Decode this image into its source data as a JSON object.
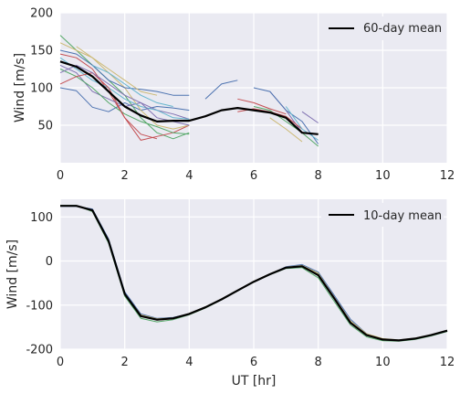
{
  "chart_data": [
    {
      "type": "line",
      "xlabel": "",
      "ylabel": "Wind [m/s]",
      "xlim": [
        0,
        12
      ],
      "ylim": [
        0,
        200
      ],
      "xticks": [
        0,
        2,
        4,
        6,
        8,
        10,
        12
      ],
      "yticks": [
        50,
        100,
        150,
        200
      ],
      "grid": true,
      "legend_position": "top-right",
      "legend": [
        "60-day mean"
      ],
      "mean": {
        "name": "60-day mean",
        "color": "#000000",
        "x": [
          0,
          0.5,
          1,
          1.5,
          2,
          2.5,
          3,
          3.5,
          4,
          4.5,
          5,
          5.5,
          6,
          6.5,
          7,
          7.5,
          8
        ],
        "y": [
          135,
          128,
          115,
          95,
          75,
          63,
          55,
          56,
          56,
          62,
          70,
          73,
          70,
          67,
          60,
          40,
          38
        ]
      },
      "series": [
        {
          "color": "#4c72b0",
          "x": [
            0,
            0.5,
            1,
            1.5,
            2,
            2.5,
            3,
            3.5,
            4
          ],
          "y": [
            100,
            96,
            74,
            68,
            80,
            70,
            75,
            73,
            70
          ]
        },
        {
          "color": "#55a868",
          "x": [
            0,
            0.5,
            1,
            1.5,
            2,
            2.5,
            3,
            3.5,
            4
          ],
          "y": [
            170,
            150,
            130,
            110,
            90,
            60,
            40,
            32,
            40
          ]
        },
        {
          "color": "#c44e52",
          "x": [
            0,
            0.5,
            1,
            1.5,
            2,
            2.5,
            3,
            3.5,
            4
          ],
          "y": [
            145,
            140,
            125,
            95,
            60,
            30,
            35,
            40,
            50
          ]
        },
        {
          "color": "#8172b2",
          "x": [
            0,
            0.5,
            1,
            1.5,
            2,
            2.5,
            3,
            3.5,
            4
          ],
          "y": [
            130,
            120,
            95,
            85,
            75,
            80,
            70,
            65,
            58
          ]
        },
        {
          "color": "#ccb974",
          "x": [
            0,
            0.5,
            1,
            1.5,
            2,
            2.5,
            3,
            3.5,
            4
          ],
          "y": [
            160,
            150,
            140,
            120,
            100,
            70,
            50,
            45,
            50
          ]
        },
        {
          "color": "#64b5cd",
          "x": [
            0,
            0.5,
            1,
            1.5,
            2,
            2.5,
            3,
            3.5,
            4
          ],
          "y": [
            140,
            125,
            110,
            100,
            85,
            75,
            70,
            60,
            58
          ]
        },
        {
          "color": "#4c72b0",
          "x": [
            0,
            0.5,
            1,
            1.5,
            2,
            2.5,
            3,
            3.5,
            4
          ],
          "y": [
            150,
            145,
            130,
            110,
            100,
            98,
            95,
            90,
            90
          ]
        },
        {
          "color": "#55a868",
          "x": [
            0,
            0.5,
            1,
            1.5,
            2,
            2.5,
            3,
            3.5,
            4
          ],
          "y": [
            125,
            115,
            100,
            80,
            65,
            55,
            48,
            40,
            38
          ]
        },
        {
          "color": "#c44e52",
          "x": [
            0,
            0.5,
            1,
            1.5,
            2,
            2.5,
            3
          ],
          "y": [
            105,
            115,
            120,
            100,
            60,
            38,
            32
          ]
        },
        {
          "color": "#8172b2",
          "x": [
            0,
            0.5,
            1,
            1.5,
            2,
            2.5,
            3,
            3.5,
            4
          ],
          "y": [
            120,
            130,
            120,
            105,
            90,
            80,
            60,
            55,
            50
          ]
        },
        {
          "color": "#ccb974",
          "x": [
            0.5,
            1,
            1.5,
            2,
            2.5,
            3
          ],
          "y": [
            155,
            140,
            125,
            110,
            95,
            90
          ]
        },
        {
          "color": "#64b5cd",
          "x": [
            1,
            1.5,
            2,
            2.5,
            3,
            3.5
          ],
          "y": [
            130,
            120,
            105,
            90,
            80,
            75
          ]
        },
        {
          "color": "#4c72b0",
          "x": [
            4.5,
            5,
            5.5
          ],
          "y": [
            85,
            105,
            110
          ]
        },
        {
          "color": "#c44e52",
          "x": [
            5.5,
            6,
            6.5,
            7
          ],
          "y": [
            85,
            80,
            72,
            65
          ]
        },
        {
          "color": "#8172b2",
          "x": [
            6.5,
            7,
            7.5
          ],
          "y": [
            95,
            70,
            40
          ]
        },
        {
          "color": "#55a868",
          "x": [
            6,
            6.5,
            7,
            7.5,
            8
          ],
          "y": [
            75,
            70,
            55,
            40,
            22
          ]
        },
        {
          "color": "#ccb974",
          "x": [
            6.5,
            7,
            7.5
          ],
          "y": [
            60,
            45,
            28
          ]
        },
        {
          "color": "#4c72b0",
          "x": [
            6,
            6.5,
            7,
            7.5,
            8
          ],
          "y": [
            100,
            95,
            70,
            55,
            25
          ]
        },
        {
          "color": "#c44e52",
          "x": [
            5.5,
            6,
            6.5,
            7,
            7.5
          ],
          "y": [
            68,
            72,
            68,
            62,
            45
          ]
        },
        {
          "color": "#8172b2",
          "x": [
            7.5,
            8
          ],
          "y": [
            68,
            53
          ]
        },
        {
          "color": "#64b5cd",
          "x": [
            7,
            7.5,
            8
          ],
          "y": [
            75,
            45,
            30
          ]
        }
      ]
    },
    {
      "type": "line",
      "xlabel": "UT [hr]",
      "ylabel": "Wind [m/s]",
      "xlim": [
        0,
        12
      ],
      "ylim": [
        -200,
        140
      ],
      "xticks": [
        0,
        2,
        4,
        6,
        8,
        10,
        12
      ],
      "yticks": [
        -200,
        -100,
        0,
        100
      ],
      "grid": true,
      "legend_position": "top-right",
      "legend": [
        "10-day mean"
      ],
      "mean": {
        "name": "10-day mean",
        "color": "#000000",
        "x": [
          0,
          0.5,
          1,
          1.5,
          2,
          2.5,
          3,
          3.5,
          4,
          4.5,
          5,
          5.5,
          6,
          6.5,
          7,
          7.5,
          8,
          8.5,
          9,
          9.5,
          10,
          10.5,
          11,
          11.5,
          12
        ],
        "y": [
          125,
          125,
          115,
          45,
          -75,
          -125,
          -133,
          -130,
          -120,
          -105,
          -87,
          -67,
          -47,
          -30,
          -15,
          -12,
          -32,
          -85,
          -140,
          -168,
          -178,
          -180,
          -176,
          -168,
          -158
        ]
      },
      "series": [
        {
          "color": "#4c72b0",
          "x": [
            0,
            0.5,
            1,
            1.5,
            2,
            2.5,
            3,
            3.5,
            4,
            4.5,
            5,
            5.5,
            6,
            6.5,
            7,
            7.5,
            8,
            8.5,
            9,
            9.5,
            10,
            10.5,
            11,
            11.5,
            12
          ],
          "y": [
            124,
            124,
            118,
            50,
            -70,
            -120,
            -130,
            -128,
            -120,
            -105,
            -87,
            -67,
            -47,
            -30,
            -13,
            -8,
            -25,
            -78,
            -132,
            -165,
            -178,
            -180,
            -176,
            -168,
            -157
          ]
        },
        {
          "color": "#55a868",
          "x": [
            0,
            0.5,
            1,
            1.5,
            2,
            2.5,
            3,
            3.5,
            4,
            4.5,
            5,
            5.5,
            6,
            6.5,
            7,
            7.5,
            8,
            8.5,
            9,
            9.5,
            10,
            10.5,
            11,
            11.5,
            12
          ],
          "y": [
            126,
            126,
            112,
            40,
            -80,
            -130,
            -138,
            -133,
            -122,
            -107,
            -88,
            -68,
            -48,
            -31,
            -17,
            -15,
            -38,
            -92,
            -145,
            -172,
            -181,
            -182,
            -178,
            -170,
            -160
          ]
        },
        {
          "color": "#c44e52",
          "x": [
            0,
            0.5,
            1,
            1.5,
            2,
            2.5,
            3,
            3.5,
            4,
            4.5,
            5,
            5.5,
            6,
            6.5,
            7,
            7.5,
            8,
            8.5,
            9,
            9.5,
            10,
            10.5,
            11,
            11.5,
            12
          ],
          "y": [
            125,
            125,
            114,
            44,
            -76,
            -124,
            -134,
            -131,
            -121,
            -106,
            -87,
            -67,
            -47,
            -30,
            -15,
            -12,
            -32,
            -86,
            -140,
            -168,
            -178,
            -180,
            -176,
            -168,
            -158
          ]
        },
        {
          "color": "#ccb974",
          "x": [
            0,
            0.5,
            1,
            1.5,
            2,
            2.5,
            3,
            3.5,
            4,
            4.5,
            5,
            5.5,
            6,
            6.5,
            7,
            7.5,
            8,
            8.5,
            9,
            9.5,
            10,
            10.5,
            11,
            11.5,
            12
          ],
          "y": [
            125,
            125,
            115,
            46,
            -74,
            -122,
            -131,
            -129,
            -119,
            -104,
            -86,
            -66,
            -46,
            -29,
            -14,
            -10,
            -28,
            -82,
            -136,
            -165,
            -176,
            -179,
            -175,
            -167,
            -157
          ]
        }
      ]
    }
  ]
}
